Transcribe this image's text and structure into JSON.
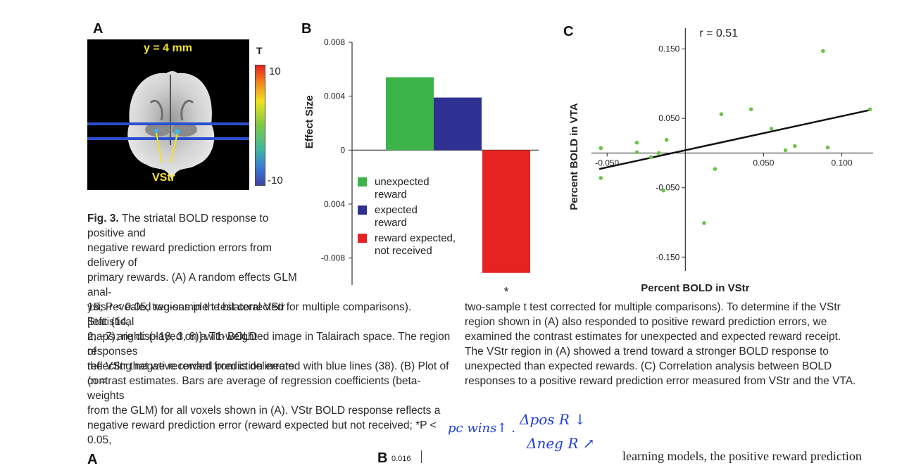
{
  "figure": {
    "panel_a": {
      "letter": "A",
      "slice_label": "y = 4 mm",
      "colorbar_title": "T",
      "colorbar_max": "10",
      "colorbar_min": "-10",
      "region_label": "VStr"
    },
    "panel_b": {
      "letter": "B"
    },
    "panel_c": {
      "letter": "C"
    },
    "caption_head": "Fig. 3.",
    "caption_left_lines": [
      "The striatal BOLD response to positive and",
      "negative reward prediction errors from delivery of",
      "primary rewards. (A) A random effects GLM anal-",
      "ysis revealed regions in the bilateral VStr [left: (14,",
      "2, −7); right: (−18, 3, 8)] with BOLD responses",
      "reflecting negative reward prediction errors (n ="
    ],
    "caption_full_left": [
      "18; P < 0.05, two-sample t test corrected for multiple comparisons). Statistical",
      "maps are displayed on a T1-weighted image in Talairach space. The region of",
      "the VStr that we recorded from is delineated with blue lines (38). (B) Plot of",
      "contrast estimates. Bars are average of regression coefficients (beta-weights",
      "from the GLM) for all voxels shown in (A). VStr BOLD response reflects a",
      "negative reward prediction error (reward expected but not received; *P < 0.05,"
    ],
    "caption_right": [
      "two-sample t test corrected for multiple comparisons). To determine if the VStr",
      "region shown in (A) also responded to positive reward prediction errors, we",
      "examined the contrast estimates for unexpected and expected reward receipt.",
      "The VStr region in (A) showed a trend toward a stronger BOLD response to",
      "unexpected than expected rewards. (C) Correlation analysis between BOLD",
      "responses to a positive reward prediction error measured from VStr and the VTA."
    ]
  },
  "handwriting": {
    "line1_left": "pc wins↑ .",
    "line1_right": "Δpos R ↓",
    "line2": "Δneg R ↗"
  },
  "bottom": {
    "letter_a": "A",
    "letter_b": "B",
    "axis_tick": "0.016",
    "body_text": "learning models, the positive reward prediction"
  },
  "chart_data": [
    {
      "type": "bar",
      "categories": [
        "unexpected reward",
        "expected reward",
        "reward expected, not received"
      ],
      "values": [
        0.0054,
        0.0039,
        -0.0091
      ],
      "colors": [
        "#3cb44a",
        "#2e3192",
        "#e52421"
      ],
      "ylabel": "Effect Size",
      "ylim": [
        -0.01,
        0.008
      ],
      "yticks": [
        "0.008",
        "0.004",
        "0",
        "0.004",
        "-0.008"
      ],
      "legend": [
        "unexpected\nreward",
        "expected\nreward",
        "reward expected,\nnot received"
      ],
      "annotation": "*"
    },
    {
      "type": "scatter",
      "xlabel": "Percent BOLD in VStr",
      "ylabel": "Percent BOLD in VTA",
      "annotation": "r = 0.51",
      "xlim": [
        -0.06,
        0.12
      ],
      "ylim": [
        -0.17,
        0.18
      ],
      "xticks": [
        "-0.050",
        "0.050",
        "0.100"
      ],
      "yticks": [
        "0.150",
        "0.050",
        "-0.050",
        "-0.150"
      ],
      "points": [
        [
          -0.054,
          0.007
        ],
        [
          -0.054,
          -0.036
        ],
        [
          -0.031,
          0.015
        ],
        [
          -0.031,
          0.001
        ],
        [
          -0.022,
          -0.006
        ],
        [
          -0.017,
          0.0
        ],
        [
          -0.012,
          0.019
        ],
        [
          -0.014,
          -0.054
        ],
        [
          0.012,
          -0.101
        ],
        [
          0.019,
          -0.023
        ],
        [
          0.023,
          0.056
        ],
        [
          0.042,
          0.063
        ],
        [
          0.055,
          0.035
        ],
        [
          0.064,
          0.004
        ],
        [
          0.07,
          0.01
        ],
        [
          0.088,
          0.147
        ],
        [
          0.091,
          0.008
        ],
        [
          0.118,
          0.063
        ]
      ],
      "fit_line": [
        [
          -0.055,
          -0.023
        ],
        [
          0.118,
          0.062
        ]
      ],
      "point_color": "#6cc24a"
    }
  ]
}
